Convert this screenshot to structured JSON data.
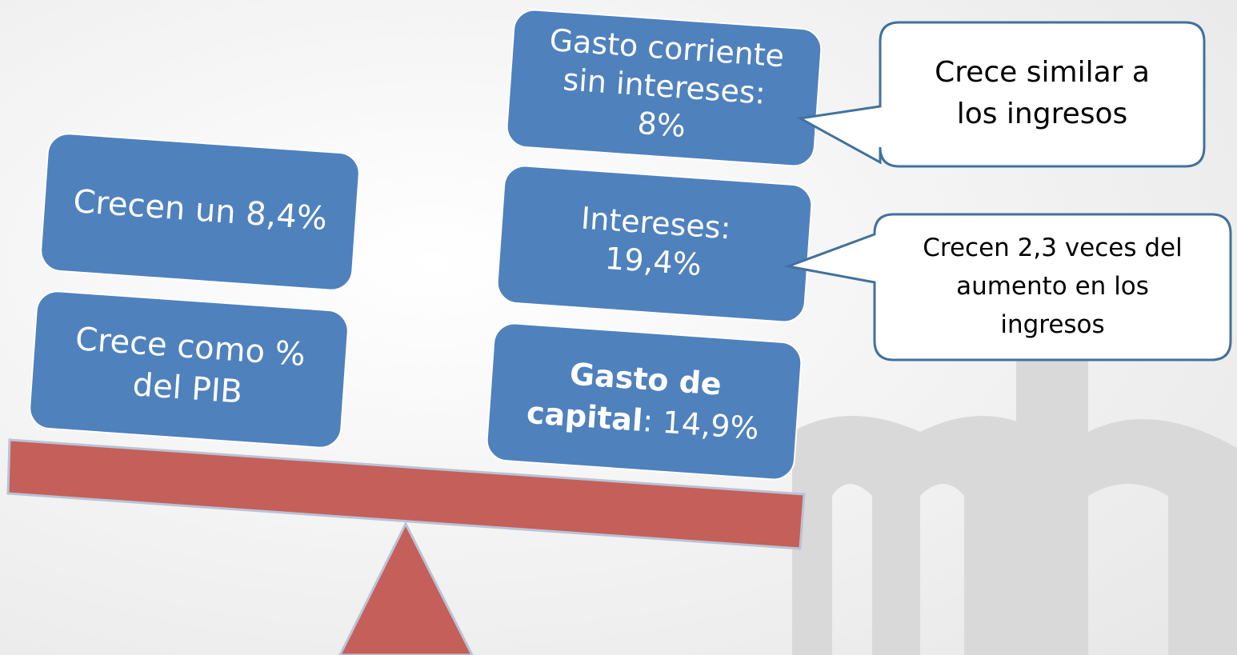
{
  "left_boxes": [
    {
      "lines": [
        "Crecen un 8,4%"
      ]
    },
    {
      "lines": [
        "Crece como %",
        "del PIB"
      ]
    }
  ],
  "right_boxes": [
    {
      "lines": [
        "Gasto corriente",
        "sin intereses:",
        "8%"
      ]
    },
    {
      "lines": [
        "Intereses:",
        "19,4%"
      ]
    },
    {
      "bold_lines": [
        "Gasto de",
        "capital"
      ],
      "rest": ": 14,9%"
    }
  ],
  "callouts": [
    {
      "lines": [
        "Crece similar a",
        "los ingresos"
      ]
    },
    {
      "lines": [
        "Crecen 2,3 veces del",
        "aumento en los",
        "ingresos"
      ]
    }
  ]
}
